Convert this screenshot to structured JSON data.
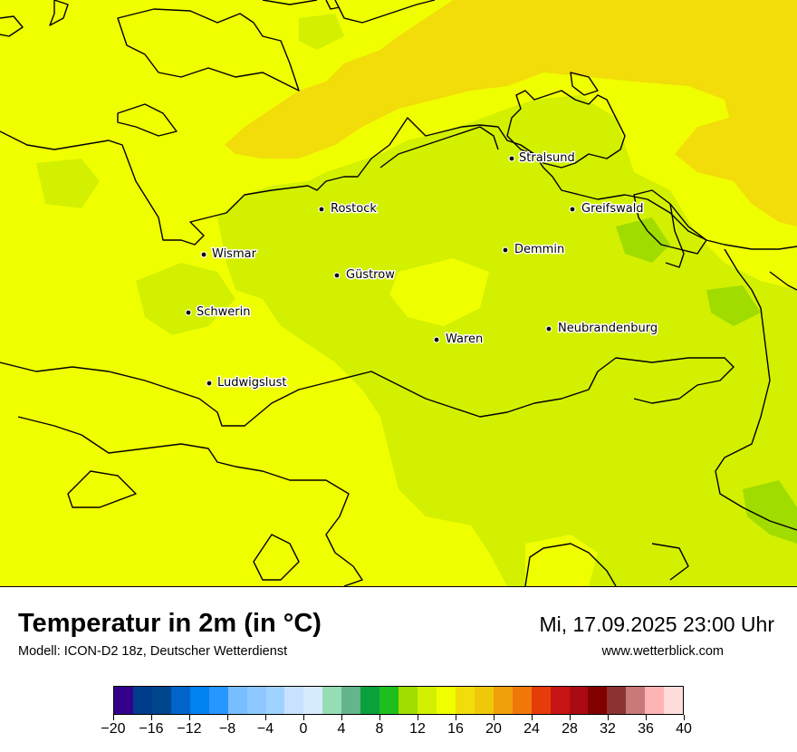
{
  "map": {
    "colors": {
      "base": "#f0ff00",
      "warm_sea": "#f2dc0a",
      "cool": "#d2f000",
      "cooler": "#a0dc00",
      "border": "#000000"
    },
    "cities": [
      {
        "name": "Stralsund"
      },
      {
        "name": "Rostock"
      },
      {
        "name": "Greifswald"
      },
      {
        "name": "Wismar"
      },
      {
        "name": "Demmin"
      },
      {
        "name": "Güstrow"
      },
      {
        "name": "Schwerin"
      },
      {
        "name": "Neubrandenburg"
      },
      {
        "name": "Waren"
      },
      {
        "name": "Ludwigslust"
      }
    ]
  },
  "footer": {
    "title": "Temperatur in 2m (in °C)",
    "subtitle": "Modell: ICON-D2 18z, Deutscher Wetterdienst",
    "datetime": "Mi, 17.09.2025 23:00 Uhr",
    "website": "www.wetterblick.com"
  },
  "legend": {
    "min": -20,
    "max": 40,
    "tick_labels": [
      "−20",
      "−16",
      "−12",
      "−8",
      "−4",
      "0",
      "4",
      "8",
      "12",
      "16",
      "20",
      "24",
      "28",
      "32",
      "36",
      "40"
    ],
    "colors": [
      "#34008c",
      "#003c8c",
      "#00468c",
      "#0064c8",
      "#0082f0",
      "#2896ff",
      "#78beff",
      "#8cc8ff",
      "#a0d2ff",
      "#c8e1ff",
      "#d7ebff",
      "#96dcb4",
      "#64b48c",
      "#0aa03c",
      "#1ebe1e",
      "#a0dc00",
      "#d2f000",
      "#f0ff00",
      "#f2dc0a",
      "#f0c80a",
      "#f0a00a",
      "#f0780a",
      "#e63c0a",
      "#c81414",
      "#aa0a14",
      "#820000",
      "#8c3232",
      "#c87878",
      "#ffb4b4",
      "#ffdcdc"
    ]
  }
}
